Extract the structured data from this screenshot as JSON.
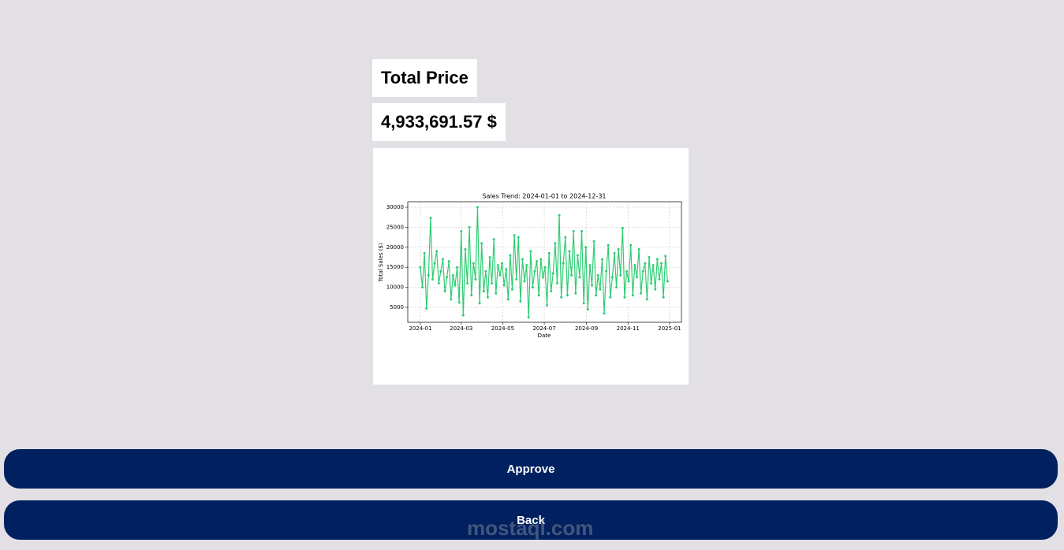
{
  "header": {
    "title": "Total Price",
    "total": "4,933,691.57 $"
  },
  "chart_data": {
    "type": "line",
    "title": "Sales Trend: 2024-01-01 to 2024-12-31",
    "x_label": "Date",
    "y_label": "Total Sales ($)",
    "x": [
      0,
      3,
      6,
      9,
      12,
      15,
      18,
      21,
      24,
      27,
      30,
      33,
      36,
      39,
      42,
      45,
      48,
      51,
      54,
      57,
      60,
      63,
      66,
      69,
      72,
      75,
      78,
      81,
      84,
      87,
      90,
      93,
      96,
      99,
      102,
      105,
      108,
      111,
      114,
      117,
      120,
      123,
      126,
      129,
      132,
      135,
      138,
      141,
      144,
      147,
      150,
      153,
      156,
      159,
      162,
      165,
      168,
      171,
      174,
      177,
      180,
      183,
      186,
      189,
      192,
      195,
      198,
      201,
      204,
      207,
      210,
      213,
      216,
      219,
      222,
      225,
      228,
      231,
      234,
      237,
      240,
      243,
      246,
      249,
      252,
      255,
      258,
      261,
      264,
      267,
      270,
      273,
      276,
      279,
      282,
      285,
      288,
      291,
      294,
      297,
      300,
      303,
      306,
      309,
      312,
      315,
      318,
      321,
      324,
      327,
      330,
      333,
      336,
      339,
      342,
      345,
      348,
      351,
      354,
      357,
      360,
      363
    ],
    "series": [
      {
        "name": "Total Sales",
        "color": "#2ecc71",
        "values": [
          15000,
          10000,
          18500,
          4700,
          13000,
          27300,
          12000,
          16000,
          19000,
          11000,
          14000,
          17000,
          9000,
          12500,
          16500,
          7000,
          13000,
          10500,
          15000,
          6200,
          24000,
          3000,
          19500,
          11000,
          25000,
          8000,
          16000,
          12000,
          30000,
          6000,
          21000,
          9000,
          14000,
          7500,
          17500,
          11000,
          22000,
          8500,
          15500,
          13000,
          16000,
          10500,
          14500,
          7000,
          18000,
          9500,
          23000,
          12000,
          22500,
          6500,
          17000,
          11500,
          15500,
          2500,
          19000,
          10000,
          14000,
          16500,
          8000,
          17000,
          12500,
          15000,
          5500,
          18500,
          9000,
          13500,
          21000,
          11000,
          28000,
          7500,
          16000,
          22500,
          8000,
          19000,
          13000,
          24000,
          8500,
          18000,
          12500,
          24000,
          6000,
          20000,
          4500,
          15500,
          10500,
          21500,
          8000,
          13000,
          9500,
          17000,
          3500,
          14000,
          20500,
          7500,
          12500,
          18500,
          10000,
          19500,
          13000,
          24800,
          7500,
          14000,
          11500,
          20500,
          8000,
          15500,
          12500,
          19500,
          8500,
          14000,
          16000,
          7000,
          17500,
          11000,
          15500,
          9500,
          17000,
          12000,
          16000,
          7500,
          17800,
          11500
        ]
      }
    ],
    "xlim": [
      -18.5,
      383.5
    ],
    "xticks": [
      {
        "value": 0,
        "label": "2024-01"
      },
      {
        "value": 60,
        "label": "2024-03"
      },
      {
        "value": 121,
        "label": "2024-05"
      },
      {
        "value": 182,
        "label": "2024-07"
      },
      {
        "value": 244,
        "label": "2024-09"
      },
      {
        "value": 305,
        "label": "2024-11"
      },
      {
        "value": 366,
        "label": "2025-01"
      }
    ],
    "ylim": [
      1260,
      31380
    ],
    "yticks": [
      5000,
      10000,
      15000,
      20000,
      25000,
      30000
    ],
    "grid": true
  },
  "buttons": {
    "approve": "Approve",
    "back": "Back"
  },
  "watermark": "mostaql.com"
}
